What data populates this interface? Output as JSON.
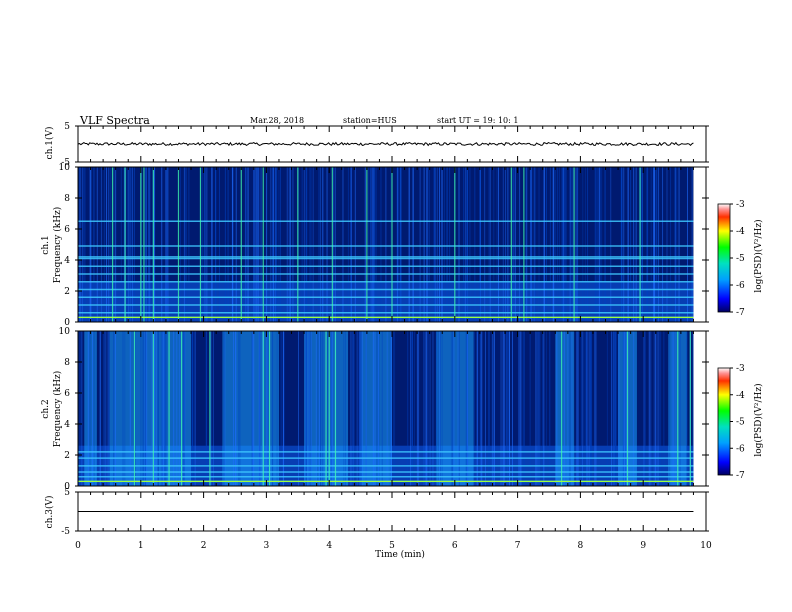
{
  "header": {
    "title": "VLF Spectra",
    "date": "Mar.28, 2018",
    "station": "station=HUS",
    "start": "start UT =  19: 10: 1"
  },
  "chart_data": [
    {
      "type": "line",
      "panel": "ch1-waveform",
      "ylabel": "ch.1(V)",
      "ylim": [
        -5,
        5
      ],
      "yticks": [
        5,
        -5
      ],
      "xlim": [
        0,
        10
      ],
      "x_extent": [
        0,
        9.8
      ],
      "level": 0,
      "noise_amplitude": 0.4
    },
    {
      "type": "heatmap",
      "panel": "ch1-spectrogram",
      "ylabel": "ch.1",
      "ylabel2": "Frequency (kHz)",
      "ylim": [
        0,
        10
      ],
      "yticks": [
        0,
        2,
        4,
        6,
        8,
        10
      ],
      "xlim": [
        0,
        10
      ],
      "x_extent": [
        0,
        9.8
      ],
      "colorbar": {
        "label": "log(PSD)(V²/Hz)",
        "range": [
          -7,
          -3
        ],
        "ticks": [
          -3,
          -4,
          -5,
          -6,
          -7
        ]
      },
      "horizontal_lines_khz": [
        0.3,
        0.6,
        1.1,
        1.6,
        2.1,
        2.6,
        3.1,
        3.6,
        4.1,
        4.2,
        4.9,
        6.5
      ],
      "bright_vertical_times_min": [
        0.55,
        0.75,
        1.0,
        1.05,
        1.2,
        1.6,
        1.95,
        2.6,
        2.95,
        3.5,
        4.05,
        4.6,
        5.0,
        6.0,
        6.9,
        7.1,
        7.9,
        8.95
      ]
    },
    {
      "type": "heatmap",
      "panel": "ch2-spectrogram",
      "ylabel": "ch.2",
      "ylabel2": "Frequency (kHz)",
      "ylim": [
        0,
        10
      ],
      "yticks": [
        0,
        2,
        4,
        6,
        8,
        10
      ],
      "xlim": [
        0,
        10
      ],
      "x_extent": [
        0,
        9.8
      ],
      "colorbar": {
        "label": "log(PSD)(V²/Hz)",
        "range": [
          -7,
          -3
        ],
        "ticks": [
          -3,
          -4,
          -5,
          -6,
          -7
        ]
      },
      "horizontal_lines_khz": [
        0.3,
        0.6,
        0.9,
        1.3,
        1.8,
        2.2
      ],
      "active_intervals_min": [
        [
          0.1,
          0.3
        ],
        [
          0.5,
          1.8
        ],
        [
          2.3,
          3.2
        ],
        [
          3.6,
          4.3
        ],
        [
          4.5,
          5.0
        ],
        [
          5.7,
          6.3
        ],
        [
          7.6,
          7.9
        ],
        [
          8.6,
          8.9
        ],
        [
          9.4,
          9.7
        ]
      ],
      "bright_vertical_times_min": [
        0.9,
        1.2,
        1.45,
        1.65,
        2.1,
        2.95,
        3.05,
        3.95,
        4.0,
        4.1,
        7.7,
        8.75,
        9.55,
        9.75
      ]
    },
    {
      "type": "line",
      "panel": "ch3-waveform",
      "ylabel": "ch.3(V)",
      "ylim": [
        -5,
        5
      ],
      "yticks": [
        5,
        -5
      ],
      "xlim": [
        0,
        10
      ],
      "x_extent": [
        0,
        9.8
      ],
      "level": 0,
      "noise_amplitude": 0
    }
  ],
  "xaxis": {
    "label": "Time (min)",
    "ticks": [
      0,
      1,
      2,
      3,
      4,
      5,
      6,
      7,
      8,
      9,
      10
    ]
  }
}
